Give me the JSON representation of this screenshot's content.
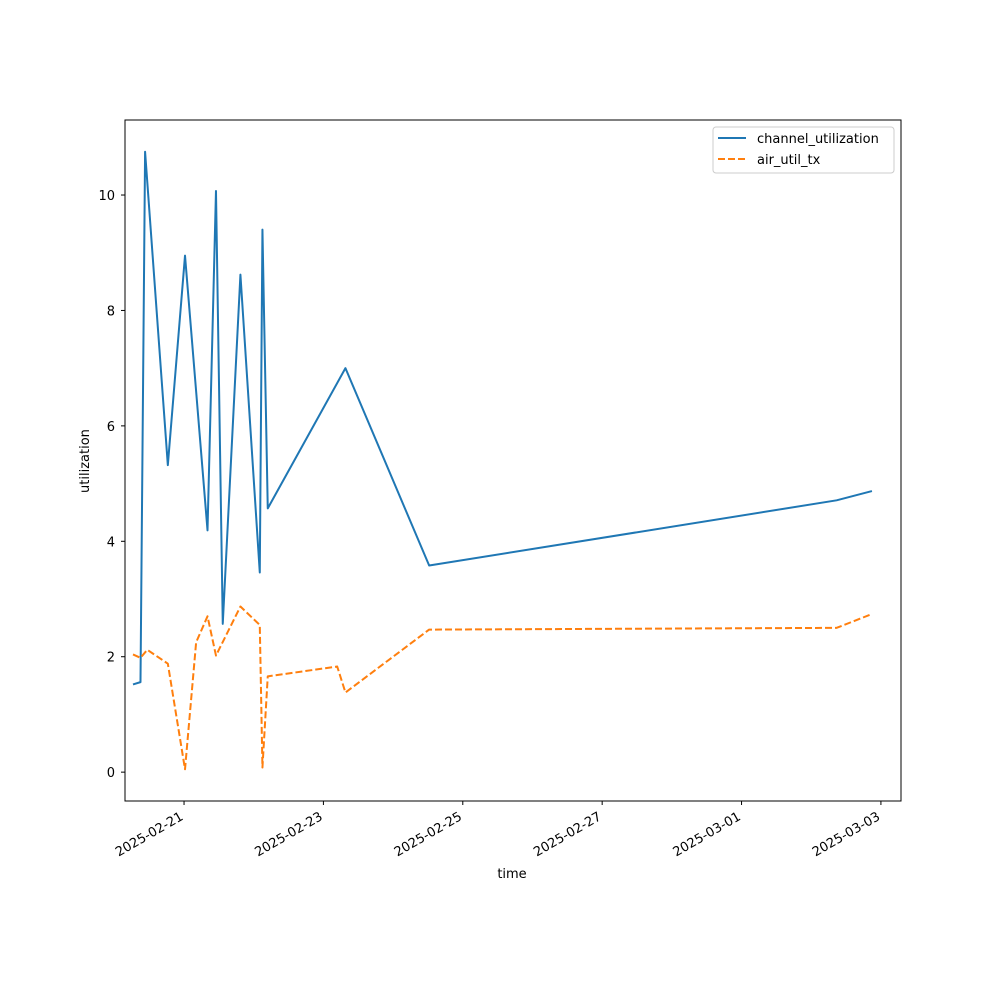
{
  "chart_data": {
    "type": "line",
    "title": "",
    "xlabel": "time",
    "ylabel": "utilization",
    "x_type": "date",
    "xlim": [
      "2025-02-20T03:40:00",
      "2025-03-03T06:55:00"
    ],
    "ylim": [
      -0.5,
      11.3
    ],
    "x_ticks": [
      "2025-02-21",
      "2025-02-23",
      "2025-02-25",
      "2025-02-27",
      "2025-03-01",
      "2025-03-03"
    ],
    "y_ticks": [
      0,
      2,
      4,
      6,
      8,
      10
    ],
    "grid": false,
    "legend_position": "top-right",
    "series": [
      {
        "name": "channel_utilization",
        "color": "#1f77b4",
        "dash": "solid",
        "points": [
          {
            "x": "2025-02-20T06:25:00",
            "y": 1.52
          },
          {
            "x": "2025-02-20T09:00:00",
            "y": 1.56
          },
          {
            "x": "2025-02-20T10:35:00",
            "y": 10.75
          },
          {
            "x": "2025-02-20T18:25:00",
            "y": 5.32
          },
          {
            "x": "2025-02-21T00:20:00",
            "y": 8.95
          },
          {
            "x": "2025-02-21T08:05:00",
            "y": 4.19
          },
          {
            "x": "2025-02-21T11:00:00",
            "y": 10.07
          },
          {
            "x": "2025-02-21T13:20:00",
            "y": 2.57
          },
          {
            "x": "2025-02-21T19:25:00",
            "y": 8.62
          },
          {
            "x": "2025-02-22T02:05:00",
            "y": 3.46
          },
          {
            "x": "2025-02-22T03:00:00",
            "y": 9.4
          },
          {
            "x": "2025-02-22T04:50:00",
            "y": 4.57
          },
          {
            "x": "2025-02-23T07:35:00",
            "y": 7.0
          },
          {
            "x": "2025-02-24T12:25:00",
            "y": 3.58
          },
          {
            "x": "2025-03-02T08:45:00",
            "y": 4.71
          },
          {
            "x": "2025-03-02T20:55:00",
            "y": 4.87
          }
        ]
      },
      {
        "name": "air_util_tx",
        "color": "#ff7f0e",
        "dash": "dashed",
        "points": [
          {
            "x": "2025-02-20T06:25:00",
            "y": 2.04
          },
          {
            "x": "2025-02-20T09:00:00",
            "y": 1.98
          },
          {
            "x": "2025-02-20T11:20:00",
            "y": 2.12
          },
          {
            "x": "2025-02-20T18:25:00",
            "y": 1.88
          },
          {
            "x": "2025-02-21T00:20:00",
            "y": 0.05
          },
          {
            "x": "2025-02-21T04:10:00",
            "y": 2.25
          },
          {
            "x": "2025-02-21T08:05:00",
            "y": 2.7
          },
          {
            "x": "2025-02-21T11:00:00",
            "y": 2.02
          },
          {
            "x": "2025-02-21T19:25:00",
            "y": 2.87
          },
          {
            "x": "2025-02-22T02:05:00",
            "y": 2.55
          },
          {
            "x": "2025-02-22T03:00:00",
            "y": 0.08
          },
          {
            "x": "2025-02-22T04:50:00",
            "y": 1.66
          },
          {
            "x": "2025-02-23T04:45:00",
            "y": 1.83
          },
          {
            "x": "2025-02-23T07:35:00",
            "y": 1.38
          },
          {
            "x": "2025-02-24T12:25:00",
            "y": 2.47
          },
          {
            "x": "2025-03-02T08:45:00",
            "y": 2.5
          },
          {
            "x": "2025-03-02T20:55:00",
            "y": 2.74
          }
        ]
      }
    ]
  }
}
